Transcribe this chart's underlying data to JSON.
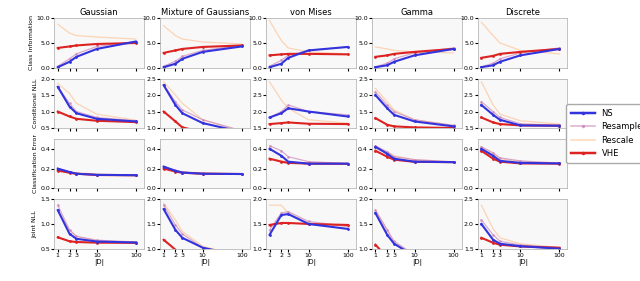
{
  "col_titles": [
    "Gaussian",
    "Mixture of Gaussians",
    "von Mises",
    "Gamma",
    "Discrete"
  ],
  "row_titles": [
    "Class Information",
    "Conditional NLL",
    "Classification Error",
    "Joint NLL"
  ],
  "x_label": "|D|",
  "x_ticks": [
    1,
    2,
    3,
    10,
    100
  ],
  "line_names": [
    "Rescale",
    "Resample",
    "VHE",
    "NS"
  ],
  "line_colors": {
    "NS": "#3333dd",
    "Resample": "#cc88bb",
    "Rescale": "#ffbb88",
    "VHE": "#dd2222"
  },
  "line_widths": {
    "NS": 1.5,
    "Resample": 0.9,
    "Rescale": 0.9,
    "VHE": 1.5
  },
  "line_styles": {
    "NS": "-",
    "Resample": "-",
    "Rescale": "-",
    "VHE": "-"
  },
  "line_alphas": {
    "NS": 1.0,
    "Resample": 0.7,
    "Rescale": 0.6,
    "VHE": 1.0
  },
  "line_markers": {
    "NS": ".",
    "Resample": ".",
    "Rescale": null,
    "VHE": "."
  },
  "marker_sizes": {
    "NS": 2,
    "Resample": 2,
    "Rescale": 0,
    "VHE": 2
  },
  "ylims": [
    [
      [
        0,
        10
      ],
      [
        0,
        10
      ],
      [
        0,
        10
      ],
      [
        0,
        10
      ],
      [
        0,
        10
      ]
    ],
    [
      [
        0.5,
        2.0
      ],
      [
        1.0,
        2.5
      ],
      [
        1.5,
        3.0
      ],
      [
        1.0,
        2.5
      ],
      [
        1.5,
        3.0
      ]
    ],
    [
      [
        0.0,
        0.5
      ],
      [
        0.0,
        0.5
      ],
      [
        0.0,
        0.5
      ],
      [
        0.0,
        0.5
      ],
      [
        0.0,
        0.5
      ]
    ],
    [
      [
        0.5,
        1.5
      ],
      [
        1.0,
        2.0
      ],
      [
        1.0,
        2.0
      ],
      [
        1.0,
        2.0
      ],
      [
        1.5,
        2.5
      ]
    ]
  ],
  "yticks": [
    [
      [
        0,
        5,
        10
      ],
      [
        0,
        5,
        10
      ],
      [
        0,
        5,
        10
      ],
      [
        0,
        5,
        10
      ],
      [
        0,
        5,
        10
      ]
    ],
    [
      [
        0.5,
        1.0,
        1.5,
        2.0
      ],
      [
        1.0,
        1.5,
        2.0,
        2.5
      ],
      [
        1.5,
        2.0,
        2.5,
        3.0
      ],
      [
        1.0,
        1.5,
        2.0,
        2.5
      ],
      [
        1.5,
        2.0,
        2.5,
        3.0
      ]
    ],
    [
      [
        0.0,
        0.2,
        0.4
      ],
      [
        0.0,
        0.2,
        0.4
      ],
      [
        0.0,
        0.2,
        0.4
      ],
      [
        0.0,
        0.2,
        0.4
      ],
      [
        0.0,
        0.2,
        0.4
      ]
    ],
    [
      [
        0.5,
        1.0,
        1.5
      ],
      [
        1.0,
        1.5,
        2.0
      ],
      [
        1.0,
        1.5,
        2.0
      ],
      [
        1.0,
        1.5,
        2.0
      ],
      [
        1.5,
        2.0,
        2.5
      ]
    ]
  ],
  "data": {
    "Class Information": {
      "Gaussian": {
        "NS": [
          0.1,
          1.2,
          2.2,
          3.8,
          5.3
        ],
        "Resample": [
          0.3,
          1.8,
          2.8,
          4.3,
          5.3
        ],
        "Rescale": [
          8.8,
          7.0,
          6.5,
          6.2,
          5.8
        ],
        "VHE": [
          4.0,
          4.3,
          4.5,
          4.8,
          5.0
        ]
      },
      "Mixture of Gaussians": {
        "NS": [
          0.1,
          0.8,
          1.8,
          3.2,
          4.3
        ],
        "Resample": [
          0.3,
          1.3,
          2.3,
          3.5,
          4.5
        ],
        "Rescale": [
          8.5,
          6.5,
          5.8,
          5.2,
          4.8
        ],
        "VHE": [
          3.0,
          3.5,
          3.8,
          4.2,
          4.5
        ]
      },
      "von Mises": {
        "NS": [
          0.1,
          0.8,
          2.0,
          3.5,
          4.2
        ],
        "Resample": [
          0.3,
          1.5,
          2.5,
          3.5,
          4.2
        ],
        "Rescale": [
          9.5,
          5.5,
          4.0,
          3.2,
          2.8
        ],
        "VHE": [
          2.5,
          2.7,
          2.8,
          2.8,
          2.7
        ]
      },
      "Gamma": {
        "NS": [
          0.1,
          0.5,
          1.2,
          2.5,
          3.8
        ],
        "Resample": [
          0.2,
          0.9,
          1.8,
          3.0,
          4.0
        ],
        "Rescale": [
          4.2,
          3.8,
          3.5,
          3.2,
          3.0
        ],
        "VHE": [
          2.2,
          2.5,
          2.8,
          3.2,
          3.8
        ]
      },
      "Discrete": {
        "NS": [
          0.1,
          0.5,
          1.2,
          2.5,
          3.8
        ],
        "Resample": [
          0.2,
          0.9,
          1.8,
          3.0,
          4.0
        ],
        "Rescale": [
          9.2,
          6.5,
          5.0,
          3.5,
          2.8
        ],
        "VHE": [
          2.0,
          2.4,
          2.8,
          3.2,
          3.8
        ]
      }
    },
    "Conditional NLL": {
      "Gaussian": {
        "NS": [
          1.75,
          1.15,
          0.95,
          0.78,
          0.7
        ],
        "Resample": [
          1.75,
          1.25,
          1.0,
          0.82,
          0.72
        ],
        "Rescale": [
          1.85,
          1.55,
          1.25,
          0.92,
          0.74
        ],
        "VHE": [
          1.0,
          0.85,
          0.78,
          0.72,
          0.68
        ]
      },
      "Mixture of Gaussians": {
        "NS": [
          2.3,
          1.7,
          1.45,
          1.15,
          0.88
        ],
        "Resample": [
          2.3,
          1.8,
          1.55,
          1.25,
          0.92
        ],
        "Rescale": [
          2.4,
          2.0,
          1.75,
          1.25,
          0.9
        ],
        "VHE": [
          1.5,
          1.2,
          1.02,
          0.88,
          0.78
        ]
      },
      "von Mises": {
        "NS": [
          1.82,
          1.95,
          2.1,
          2.0,
          1.85
        ],
        "Resample": [
          1.82,
          2.0,
          2.2,
          2.0,
          1.9
        ],
        "Rescale": [
          2.9,
          2.35,
          2.1,
          1.75,
          1.65
        ],
        "VHE": [
          1.62,
          1.65,
          1.67,
          1.63,
          1.62
        ]
      },
      "Gamma": {
        "NS": [
          2.0,
          1.6,
          1.4,
          1.2,
          1.05
        ],
        "Resample": [
          2.1,
          1.7,
          1.5,
          1.25,
          1.08
        ],
        "Rescale": [
          2.2,
          1.8,
          1.55,
          1.25,
          1.08
        ],
        "VHE": [
          1.3,
          1.1,
          1.05,
          1.02,
          1.0
        ]
      },
      "Discrete": {
        "NS": [
          2.2,
          1.9,
          1.75,
          1.58,
          1.57
        ],
        "Resample": [
          2.3,
          2.0,
          1.82,
          1.63,
          1.58
        ],
        "Rescale": [
          2.9,
          2.2,
          1.92,
          1.72,
          1.62
        ],
        "VHE": [
          1.82,
          1.67,
          1.62,
          1.58,
          1.57
        ]
      }
    },
    "Classification Error": {
      "Gaussian": {
        "NS": [
          0.2,
          0.165,
          0.148,
          0.137,
          0.133
        ],
        "Resample": [
          0.2,
          0.168,
          0.152,
          0.14,
          0.135
        ],
        "Rescale": [
          0.18,
          0.168,
          0.158,
          0.145,
          0.135
        ],
        "VHE": [
          0.18,
          0.158,
          0.148,
          0.135,
          0.132
        ]
      },
      "Mixture of Gaussians": {
        "NS": [
          0.22,
          0.178,
          0.16,
          0.148,
          0.145
        ],
        "Resample": [
          0.22,
          0.182,
          0.165,
          0.152,
          0.147
        ],
        "Rescale": [
          0.2,
          0.18,
          0.168,
          0.155,
          0.148
        ],
        "VHE": [
          0.2,
          0.17,
          0.158,
          0.148,
          0.145
        ]
      },
      "von Mises": {
        "NS": [
          0.4,
          0.33,
          0.27,
          0.25,
          0.25
        ],
        "Resample": [
          0.43,
          0.38,
          0.32,
          0.27,
          0.25
        ],
        "Rescale": [
          0.3,
          0.28,
          0.265,
          0.255,
          0.25
        ],
        "VHE": [
          0.3,
          0.27,
          0.258,
          0.25,
          0.248
        ]
      },
      "Gamma": {
        "NS": [
          0.42,
          0.35,
          0.3,
          0.27,
          0.265
        ],
        "Resample": [
          0.43,
          0.37,
          0.32,
          0.29,
          0.268
        ],
        "Rescale": [
          0.4,
          0.37,
          0.33,
          0.29,
          0.268
        ],
        "VHE": [
          0.38,
          0.32,
          0.29,
          0.268,
          0.265
        ]
      },
      "Discrete": {
        "NS": [
          0.4,
          0.33,
          0.278,
          0.258,
          0.252
        ],
        "Resample": [
          0.42,
          0.36,
          0.308,
          0.278,
          0.255
        ],
        "Rescale": [
          0.42,
          0.35,
          0.3,
          0.27,
          0.252
        ],
        "VHE": [
          0.38,
          0.3,
          0.27,
          0.252,
          0.25
        ]
      }
    },
    "Joint NLL": {
      "Gaussian": {
        "NS": [
          1.28,
          0.8,
          0.7,
          0.645,
          0.625
        ],
        "Resample": [
          1.38,
          0.88,
          0.75,
          0.672,
          0.635
        ],
        "Rescale": [
          1.28,
          0.88,
          0.75,
          0.662,
          0.625
        ],
        "VHE": [
          0.73,
          0.65,
          0.635,
          0.622,
          0.618
        ]
      },
      "Mixture of Gaussians": {
        "NS": [
          1.8,
          1.38,
          1.22,
          1.02,
          0.85
        ],
        "Resample": [
          1.88,
          1.48,
          1.3,
          1.02,
          0.85
        ],
        "Rescale": [
          1.92,
          1.58,
          1.35,
          1.05,
          0.85
        ],
        "VHE": [
          1.18,
          0.98,
          0.9,
          0.82,
          0.75
        ]
      },
      "von Mises": {
        "NS": [
          1.28,
          1.68,
          1.7,
          1.5,
          1.4
        ],
        "Resample": [
          1.38,
          1.72,
          1.75,
          1.55,
          1.45
        ],
        "Rescale": [
          1.88,
          1.88,
          1.72,
          1.52,
          1.45
        ],
        "VHE": [
          1.48,
          1.52,
          1.52,
          1.5,
          1.48
        ]
      },
      "Gamma": {
        "NS": [
          1.72,
          1.28,
          1.1,
          0.85,
          0.7
        ],
        "Resample": [
          1.78,
          1.38,
          1.15,
          0.875,
          0.7
        ],
        "Rescale": [
          1.78,
          1.38,
          1.12,
          0.855,
          0.7
        ],
        "VHE": [
          1.08,
          0.82,
          0.735,
          0.645,
          0.618
        ]
      },
      "Discrete": {
        "NS": [
          2.0,
          1.68,
          1.6,
          1.55,
          1.5
        ],
        "Resample": [
          2.08,
          1.78,
          1.65,
          1.575,
          1.52
        ],
        "Rescale": [
          2.38,
          1.9,
          1.72,
          1.6,
          1.52
        ],
        "VHE": [
          1.72,
          1.62,
          1.58,
          1.545,
          1.52
        ]
      }
    }
  }
}
